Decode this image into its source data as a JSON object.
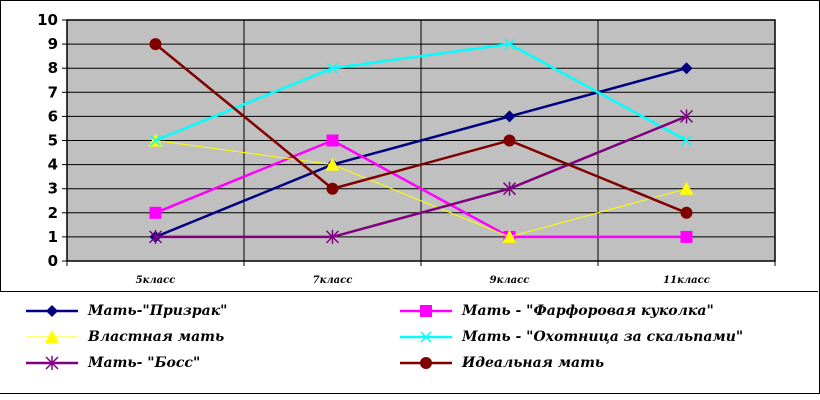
{
  "chart_data": {
    "type": "line",
    "categories": [
      "5класс",
      "7класс",
      "9класс",
      "11класс"
    ],
    "ylim": [
      0,
      10
    ],
    "yticks": [
      0,
      1,
      2,
      3,
      4,
      5,
      6,
      7,
      8,
      9,
      10
    ],
    "grid": true,
    "legend_position": "bottom",
    "series": [
      {
        "name": "Мать-\"Призрак\"",
        "values": [
          1,
          4,
          6,
          8
        ],
        "color": "#000080",
        "marker": "diamond",
        "width": 2.5
      },
      {
        "name": "Мать - \"Фарфоровая куколка\"",
        "values": [
          2,
          5,
          1,
          1
        ],
        "color": "#ff00ff",
        "marker": "square",
        "width": 2.5
      },
      {
        "name": "Властная мать",
        "values": [
          5,
          4,
          1,
          3
        ],
        "color": "#ffff00",
        "marker": "triangle",
        "width": 1
      },
      {
        "name": "Мать - \"Охотница за скальпами\"",
        "values": [
          5,
          8,
          9,
          5
        ],
        "color": "#00ffff",
        "marker": "x",
        "width": 2.5
      },
      {
        "name": "Мать- \"Босс\"",
        "values": [
          1,
          1,
          3,
          6
        ],
        "color": "#800080",
        "marker": "star",
        "width": 2.5
      },
      {
        "name": "Идеальная мать",
        "values": [
          9,
          3,
          5,
          2
        ],
        "color": "#800000",
        "marker": "circle",
        "width": 2.5
      }
    ]
  }
}
